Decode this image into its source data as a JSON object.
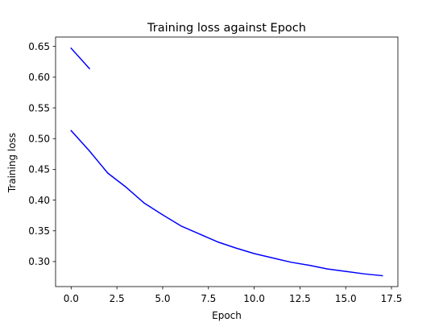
{
  "chart_data": {
    "type": "line",
    "title": "Training loss against Epoch",
    "xlabel": "Epoch",
    "ylabel": "Training loss",
    "xlim": [
      -0.85,
      17.85
    ],
    "ylim": [
      0.2593,
      0.6653
    ],
    "x_ticks": [
      0.0,
      2.5,
      5.0,
      7.5,
      10.0,
      12.5,
      15.0,
      17.5
    ],
    "x_tick_labels": [
      "0.0",
      "2.5",
      "5.0",
      "7.5",
      "10.0",
      "12.5",
      "15.0",
      "17.5"
    ],
    "y_ticks": [
      0.3,
      0.35,
      0.4,
      0.45,
      0.5,
      0.55,
      0.6,
      0.65
    ],
    "y_tick_labels": [
      "0.30",
      "0.35",
      "0.40",
      "0.45",
      "0.50",
      "0.55",
      "0.60",
      "0.65"
    ],
    "grid": false,
    "line_color": "#0000ff",
    "series": [
      {
        "x": [
          0,
          1
        ],
        "y": [
          0.647,
          0.614
        ]
      },
      {
        "x": [
          0,
          1,
          2,
          3,
          4,
          5,
          6,
          7,
          8,
          9,
          10,
          11,
          12,
          13,
          14,
          15,
          16,
          17
        ],
        "y": [
          0.513,
          0.48,
          0.444,
          0.421,
          0.395,
          0.376,
          0.358,
          0.345,
          0.332,
          0.322,
          0.313,
          0.306,
          0.299,
          0.294,
          0.288,
          0.284,
          0.28,
          0.277
        ]
      }
    ]
  }
}
